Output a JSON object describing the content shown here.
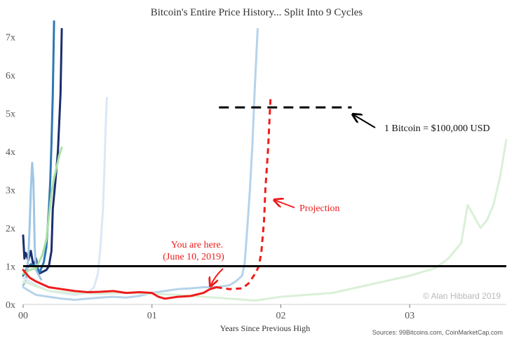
{
  "chart_data": {
    "type": "line",
    "title": "Bitcoin's Entire Price History... Split Into 9 Cycles",
    "xlabel": "Years Since Previous High",
    "ylabel": "",
    "xlim": [
      0,
      3.75
    ],
    "ylim": [
      0,
      7.5
    ],
    "x_ticks": [
      {
        "value": 0,
        "label": "00"
      },
      {
        "value": 1,
        "label": "01"
      },
      {
        "value": 2,
        "label": "02"
      },
      {
        "value": 3,
        "label": "03"
      }
    ],
    "y_ticks": [
      {
        "value": 0,
        "label": "0x"
      },
      {
        "value": 1,
        "label": "1x"
      },
      {
        "value": 2,
        "label": "2x"
      },
      {
        "value": 3,
        "label": "3x"
      },
      {
        "value": 4,
        "label": "4x"
      },
      {
        "value": 5,
        "label": "5x"
      },
      {
        "value": 6,
        "label": "6x"
      },
      {
        "value": 7,
        "label": "7x"
      }
    ],
    "grid": false,
    "reference_lines": [
      {
        "y": 1,
        "x_from": 0,
        "x_to": 3.75,
        "color": "#000000",
        "style": "solid"
      },
      {
        "y": 5.15,
        "x_from": 1.52,
        "x_to": 2.55,
        "color": "#000000",
        "style": "dashed"
      }
    ],
    "series": [
      {
        "color": "#1b2f6e",
        "values": [
          [
            0,
            1.8
          ],
          [
            0.01,
            1.2
          ],
          [
            0.02,
            1.35
          ],
          [
            0.04,
            1.15
          ],
          [
            0.06,
            1.4
          ],
          [
            0.08,
            1.0
          ],
          [
            0.1,
            1.2
          ],
          [
            0.12,
            0.8
          ],
          [
            0.15,
            0.85
          ],
          [
            0.18,
            0.9
          ],
          [
            0.2,
            1.0
          ],
          [
            0.22,
            1.4
          ],
          [
            0.23,
            2.5
          ],
          [
            0.25,
            3.2
          ],
          [
            0.27,
            4.0
          ],
          [
            0.29,
            5.5
          ],
          [
            0.3,
            7.2
          ]
        ]
      },
      {
        "color": "#2e77b5",
        "values": [
          [
            0,
            0.75
          ],
          [
            0.03,
            0.95
          ],
          [
            0.06,
            1.05
          ],
          [
            0.1,
            1.0
          ],
          [
            0.13,
            0.85
          ],
          [
            0.16,
            1.1
          ],
          [
            0.18,
            1.5
          ],
          [
            0.2,
            2.5
          ],
          [
            0.21,
            3.2
          ],
          [
            0.22,
            4.2
          ],
          [
            0.23,
            5.5
          ],
          [
            0.24,
            7.4
          ]
        ]
      },
      {
        "color": "#9ec6e6",
        "values": [
          [
            0,
            0.5
          ],
          [
            0.02,
            0.6
          ],
          [
            0.04,
            1.2
          ],
          [
            0.05,
            2.0
          ],
          [
            0.06,
            3.0
          ],
          [
            0.07,
            3.7
          ],
          [
            0.08,
            3.2
          ],
          [
            0.09,
            1.5
          ],
          [
            0.1,
            0.9
          ],
          [
            0.14,
            0.65
          ]
        ]
      },
      {
        "color": "#a9e0a5",
        "values": [
          [
            0,
            0.8
          ],
          [
            0.05,
            0.9
          ],
          [
            0.1,
            0.95
          ],
          [
            0.15,
            1.3
          ],
          [
            0.18,
            1.7
          ],
          [
            0.2,
            2.3
          ],
          [
            0.22,
            2.9
          ],
          [
            0.24,
            3.3
          ],
          [
            0.26,
            3.6
          ],
          [
            0.28,
            3.9
          ],
          [
            0.3,
            4.1
          ]
        ]
      },
      {
        "color": "#dbe8f6",
        "values": [
          [
            0,
            0.7
          ],
          [
            0.1,
            0.5
          ],
          [
            0.2,
            0.35
          ],
          [
            0.3,
            0.3
          ],
          [
            0.4,
            0.25
          ],
          [
            0.5,
            0.3
          ],
          [
            0.55,
            0.45
          ],
          [
            0.58,
            0.8
          ],
          [
            0.6,
            1.5
          ],
          [
            0.62,
            2.5
          ],
          [
            0.63,
            3.5
          ],
          [
            0.64,
            4.6
          ],
          [
            0.65,
            5.4
          ]
        ]
      },
      {
        "color": "#b6d3ea",
        "values": [
          [
            0,
            0.45
          ],
          [
            0.1,
            0.25
          ],
          [
            0.2,
            0.2
          ],
          [
            0.3,
            0.15
          ],
          [
            0.4,
            0.12
          ],
          [
            0.5,
            0.15
          ],
          [
            0.6,
            0.18
          ],
          [
            0.7,
            0.2
          ],
          [
            0.8,
            0.18
          ],
          [
            0.9,
            0.22
          ],
          [
            1.0,
            0.3
          ],
          [
            1.1,
            0.35
          ],
          [
            1.2,
            0.4
          ],
          [
            1.3,
            0.42
          ],
          [
            1.4,
            0.45
          ],
          [
            1.5,
            0.45
          ],
          [
            1.6,
            0.5
          ],
          [
            1.65,
            0.6
          ],
          [
            1.7,
            0.75
          ],
          [
            1.72,
            1.1
          ],
          [
            1.74,
            2.0
          ],
          [
            1.76,
            3.0
          ],
          [
            1.78,
            4.2
          ],
          [
            1.8,
            5.8
          ],
          [
            1.82,
            7.2
          ]
        ]
      },
      {
        "color": "#daf0d8",
        "values": [
          [
            0,
            0.6
          ],
          [
            0.2,
            0.35
          ],
          [
            0.4,
            0.3
          ],
          [
            0.6,
            0.28
          ],
          [
            0.8,
            0.3
          ],
          [
            1.0,
            0.28
          ],
          [
            1.2,
            0.25
          ],
          [
            1.4,
            0.2
          ],
          [
            1.6,
            0.15
          ],
          [
            1.8,
            0.1
          ],
          [
            2.0,
            0.2
          ],
          [
            2.2,
            0.25
          ],
          [
            2.4,
            0.3
          ],
          [
            2.6,
            0.45
          ],
          [
            2.8,
            0.6
          ],
          [
            3.0,
            0.75
          ],
          [
            3.2,
            0.95
          ],
          [
            3.3,
            1.2
          ],
          [
            3.4,
            1.6
          ],
          [
            3.45,
            2.6
          ],
          [
            3.5,
            2.3
          ],
          [
            3.55,
            2.0
          ],
          [
            3.6,
            2.2
          ],
          [
            3.65,
            2.6
          ],
          [
            3.7,
            3.3
          ],
          [
            3.75,
            4.3
          ]
        ]
      },
      {
        "color": "#ee1c1c",
        "values": [
          [
            0,
            0.9
          ],
          [
            0.05,
            0.7
          ],
          [
            0.1,
            0.6
          ],
          [
            0.2,
            0.45
          ],
          [
            0.3,
            0.4
          ],
          [
            0.4,
            0.35
          ],
          [
            0.5,
            0.32
          ],
          [
            0.6,
            0.33
          ],
          [
            0.7,
            0.35
          ],
          [
            0.8,
            0.3
          ],
          [
            0.9,
            0.32
          ],
          [
            1.0,
            0.3
          ],
          [
            1.05,
            0.2
          ],
          [
            1.1,
            0.15
          ],
          [
            1.2,
            0.2
          ],
          [
            1.3,
            0.22
          ],
          [
            1.4,
            0.3
          ],
          [
            1.45,
            0.4
          ],
          [
            1.5,
            0.45
          ]
        ]
      }
    ],
    "projection": {
      "color": "#ee1c1c",
      "style": "dashed",
      "values": [
        [
          1.5,
          0.45
        ],
        [
          1.6,
          0.4
        ],
        [
          1.7,
          0.42
        ],
        [
          1.75,
          0.55
        ],
        [
          1.8,
          0.8
        ],
        [
          1.83,
          1.0
        ],
        [
          1.85,
          1.4
        ],
        [
          1.87,
          2.2
        ],
        [
          1.88,
          3.0
        ],
        [
          1.9,
          4.0
        ],
        [
          1.92,
          5.4
        ]
      ]
    },
    "annotations": {
      "target_label": "1 Bitcoin = $100,000 USD",
      "projection_label": "Projection",
      "here_line1": "You are here.",
      "here_line2": "(June 10, 2019)"
    },
    "credit": "© Alan Hibbard 2019",
    "source": "Sources: 99Bitcoins.com, CoinMarketCap.com"
  }
}
